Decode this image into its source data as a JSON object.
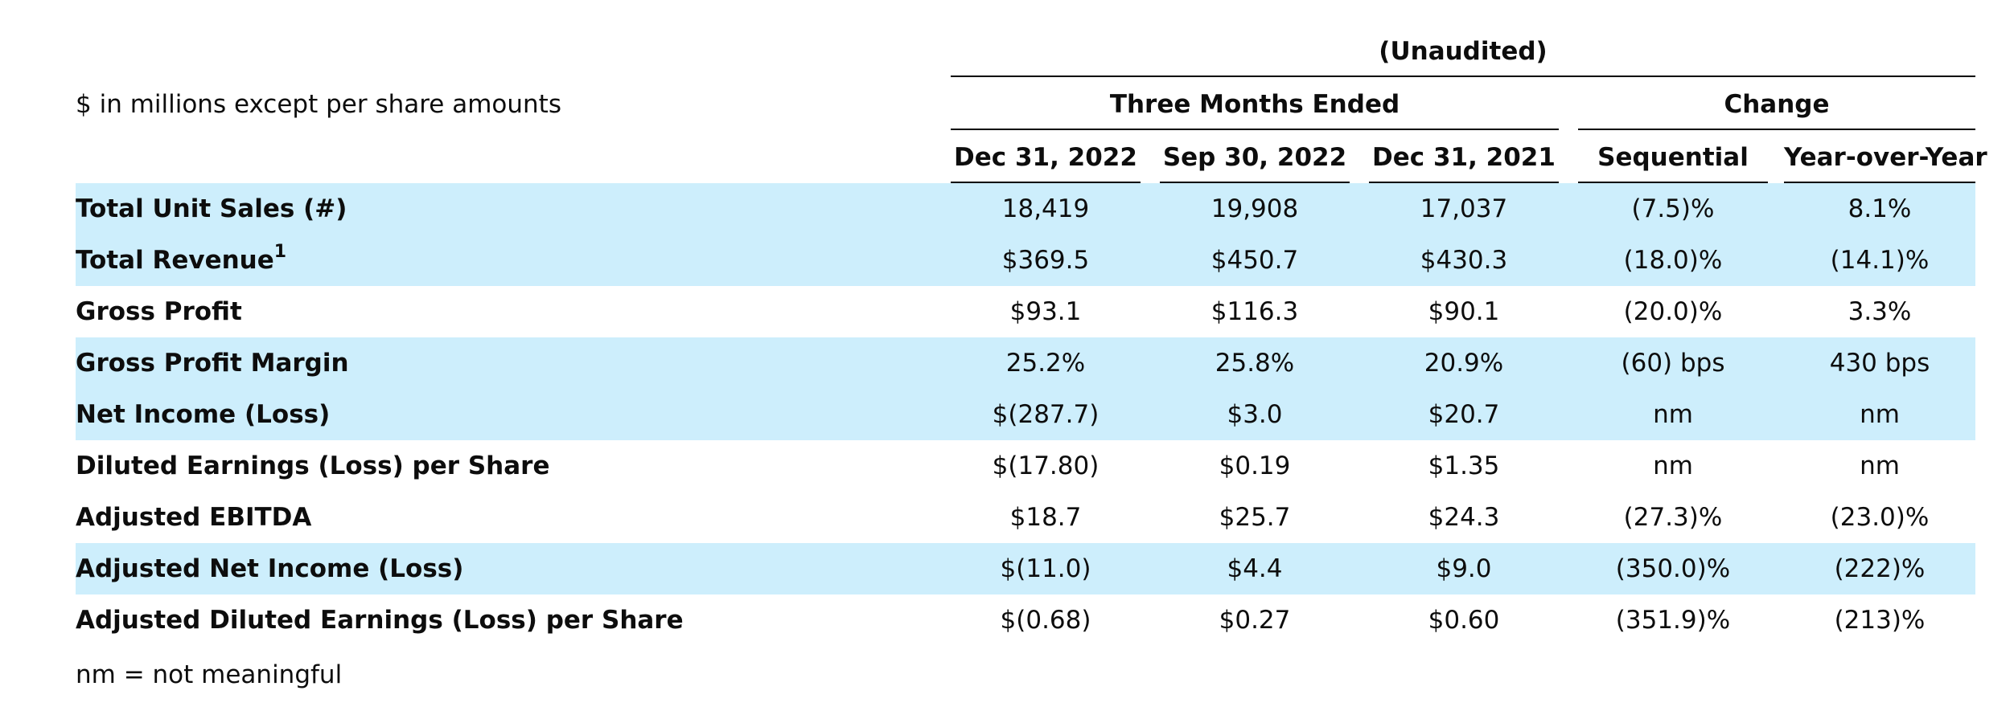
{
  "header": {
    "unaudited": "(Unaudited)",
    "units_note": "$ in millions except per share amounts",
    "three_months_ended": "Three Months Ended",
    "change": "Change",
    "columns": [
      "Dec 31, 2022",
      "Sep 30, 2022",
      "Dec 31, 2021",
      "Sequential",
      "Year-over-Year"
    ]
  },
  "rows": [
    {
      "label": "Total Unit Sales (#)",
      "sup": "",
      "shaded": true,
      "values": [
        "18,419",
        "19,908",
        "17,037",
        "(7.5)%",
        "8.1%"
      ]
    },
    {
      "label": "Total Revenue",
      "sup": "1",
      "shaded": true,
      "values": [
        "$369.5",
        "$450.7",
        "$430.3",
        "(18.0)%",
        "(14.1)%"
      ]
    },
    {
      "label": "Gross Profit",
      "sup": "",
      "shaded": false,
      "values": [
        "$93.1",
        "$116.3",
        "$90.1",
        "(20.0)%",
        "3.3%"
      ]
    },
    {
      "label": "Gross Profit Margin",
      "sup": "",
      "shaded": true,
      "values": [
        "25.2%",
        "25.8%",
        "20.9%",
        "(60) bps",
        "430 bps"
      ]
    },
    {
      "label": "Net Income (Loss)",
      "sup": "",
      "shaded": true,
      "values": [
        "$(287.7)",
        "$3.0",
        "$20.7",
        "nm",
        "nm"
      ]
    },
    {
      "label": "Diluted Earnings (Loss) per Share",
      "sup": "",
      "shaded": false,
      "values": [
        "$(17.80)",
        "$0.19",
        "$1.35",
        "nm",
        "nm"
      ]
    },
    {
      "label": "Adjusted EBITDA",
      "sup": "",
      "shaded": false,
      "values": [
        "$18.7",
        "$25.7",
        "$24.3",
        "(27.3)%",
        "(23.0)%"
      ]
    },
    {
      "label": "Adjusted Net Income (Loss)",
      "sup": "",
      "shaded": true,
      "values": [
        "$(11.0)",
        "$4.4",
        "$9.0",
        "(350.0)%",
        "(222)%"
      ]
    },
    {
      "label": "Adjusted Diluted Earnings (Loss) per Share",
      "sup": "",
      "shaded": false,
      "values": [
        "$(0.68)",
        "$0.27",
        "$0.60",
        "(351.9)%",
        "(213)%"
      ]
    }
  ],
  "footnote": "nm = not meaningful",
  "colors": {
    "row_shade": "#cdeefc",
    "rule": "#000000"
  }
}
